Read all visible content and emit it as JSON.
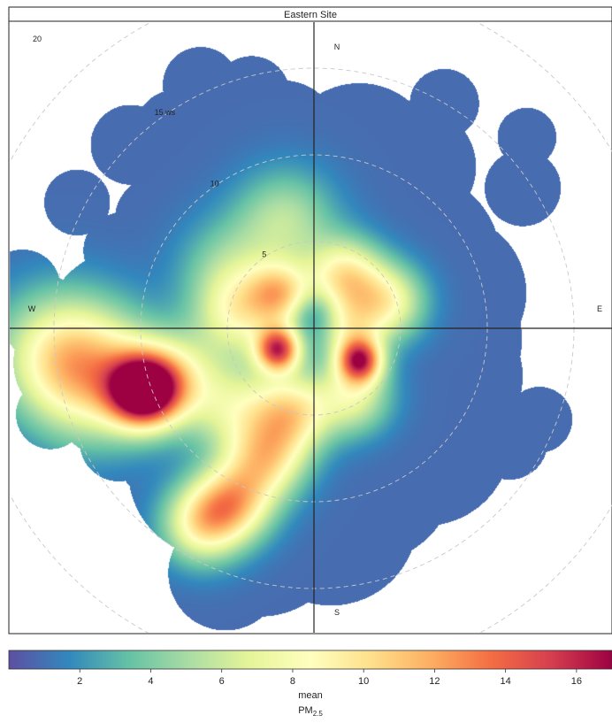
{
  "chart_data": {
    "type": "polar-plot",
    "panel_title": "Eastern Site",
    "compass": {
      "north": "N",
      "east": "E",
      "south": "S",
      "west": "W"
    },
    "radial_axis": {
      "unit_label": "ws",
      "rings": [
        5,
        10,
        15,
        20
      ],
      "ring_labels": [
        "5",
        "10",
        "15 ws",
        "20"
      ]
    },
    "colorbar": {
      "label": "mean",
      "pollutant": "PM",
      "pollutant_subscript": "2.5",
      "range": [
        0,
        17
      ],
      "ticks": [
        2,
        4,
        6,
        8,
        10,
        12,
        14,
        16
      ],
      "palette": [
        "#5e4fa2",
        "#3288bd",
        "#66c2a5",
        "#abdda4",
        "#e6f598",
        "#ffffbf",
        "#fee08b",
        "#fdae61",
        "#f46d43",
        "#d53e4f",
        "#9e0142"
      ]
    },
    "background_value": 0.9,
    "coverage_blobs": [
      {
        "theta": 0,
        "ws": 0,
        "r": 9.5
      },
      {
        "theta": 330,
        "ws": 10,
        "r": 5.5
      },
      {
        "theta": 315,
        "ws": 15,
        "r": 2.3
      },
      {
        "theta": 325,
        "ws": 14,
        "r": 2.3
      },
      {
        "theta": 335,
        "ws": 15.5,
        "r": 2.2
      },
      {
        "theta": 345,
        "ws": 14,
        "r": 2.2
      },
      {
        "theta": 350,
        "ws": 11,
        "r": 3.5
      },
      {
        "theta": 298,
        "ws": 15.5,
        "r": 1.9
      },
      {
        "theta": 292,
        "ws": 12,
        "r": 2.2
      },
      {
        "theta": 305,
        "ws": 11,
        "r": 2.5
      },
      {
        "theta": 15,
        "ws": 10,
        "r": 4.5
      },
      {
        "theta": 32,
        "ws": 11,
        "r": 3.5
      },
      {
        "theta": 30,
        "ws": 15,
        "r": 2.0
      },
      {
        "theta": 55,
        "ws": 7,
        "r": 5
      },
      {
        "theta": 75,
        "ws": 8,
        "r": 4.5
      },
      {
        "theta": 95,
        "ws": 7,
        "r": 5
      },
      {
        "theta": 110,
        "ws": 8,
        "r": 4.5
      },
      {
        "theta": 120,
        "ws": 13,
        "r": 2.2
      },
      {
        "theta": 135,
        "ws": 9,
        "r": 5
      },
      {
        "theta": 160,
        "ws": 9,
        "r": 5
      },
      {
        "theta": 175,
        "ws": 11,
        "r": 5
      },
      {
        "theta": 195,
        "ws": 12,
        "r": 5
      },
      {
        "theta": 200,
        "ws": 15,
        "r": 3.3
      },
      {
        "theta": 215,
        "ws": 10,
        "r": 5
      },
      {
        "theta": 230,
        "ws": 9,
        "r": 5
      },
      {
        "theta": 240,
        "ws": 13,
        "r": 2.3
      },
      {
        "theta": 255,
        "ws": 11,
        "r": 5
      },
      {
        "theta": 262,
        "ws": 14,
        "r": 3.5
      },
      {
        "theta": 270,
        "ws": 11,
        "r": 4.5
      },
      {
        "theta": 272,
        "ws": 15.5,
        "r": 2.5
      },
      {
        "theta": 278,
        "ws": 17,
        "r": 2.2
      },
      {
        "theta": 285,
        "ws": 9,
        "r": 3.5
      },
      {
        "theta": 252,
        "ws": 16,
        "r": 2.0
      }
    ],
    "isolated_blobs": [
      {
        "theta": 112,
        "ws": 14,
        "r": 1.9
      },
      {
        "theta": 48,
        "ws": 16.5,
        "r": 1.7
      },
      {
        "theta": 56,
        "ws": 14.5,
        "r": 2.2
      }
    ],
    "concentration_peaks": [
      {
        "theta": 250,
        "ws": 10.5,
        "value": 16.5,
        "spread": 1.4
      },
      {
        "theta": 258,
        "ws": 13,
        "value": 8,
        "spread": 2.6
      },
      {
        "theta": 265,
        "ws": 15,
        "value": 5.2,
        "spread": 2.5
      },
      {
        "theta": 250,
        "ws": 8.5,
        "value": 6,
        "spread": 1.8
      },
      {
        "theta": 240,
        "ws": 2.4,
        "value": 13,
        "spread": 0.9
      },
      {
        "theta": 125,
        "ws": 3.2,
        "value": 12.5,
        "spread": 0.9
      },
      {
        "theta": 315,
        "ws": 2.8,
        "value": 8,
        "spread": 1.3
      },
      {
        "theta": 30,
        "ws": 3.5,
        "value": 8,
        "spread": 1.5
      },
      {
        "theta": 70,
        "ws": 4.5,
        "value": 7,
        "spread": 1.5
      },
      {
        "theta": 195,
        "ws": 5,
        "value": 8,
        "spread": 1.6
      },
      {
        "theta": 200,
        "ws": 8,
        "value": 7.5,
        "spread": 1.6
      },
      {
        "theta": 205,
        "ws": 11,
        "value": 8.5,
        "spread": 1.6
      },
      {
        "theta": 210,
        "ws": 13,
        "value": 7.5,
        "spread": 1.6
      },
      {
        "theta": 280,
        "ws": 4.5,
        "value": 6,
        "spread": 1.7
      },
      {
        "theta": 345,
        "ws": 6.5,
        "value": 4.5,
        "spread": 2.0
      },
      {
        "theta": 150,
        "ws": 4.5,
        "value": 6,
        "spread": 1.5
      },
      {
        "theta": 90,
        "ws": 2.0,
        "value": 5,
        "spread": 1.3
      },
      {
        "theta": 225,
        "ws": 6.5,
        "value": 5,
        "spread": 1.8
      },
      {
        "theta": 305,
        "ws": 6,
        "value": 3.5,
        "spread": 2.0
      },
      {
        "theta": 0,
        "ws": 1.0,
        "value": -2.5,
        "spread": 0.9
      }
    ]
  }
}
